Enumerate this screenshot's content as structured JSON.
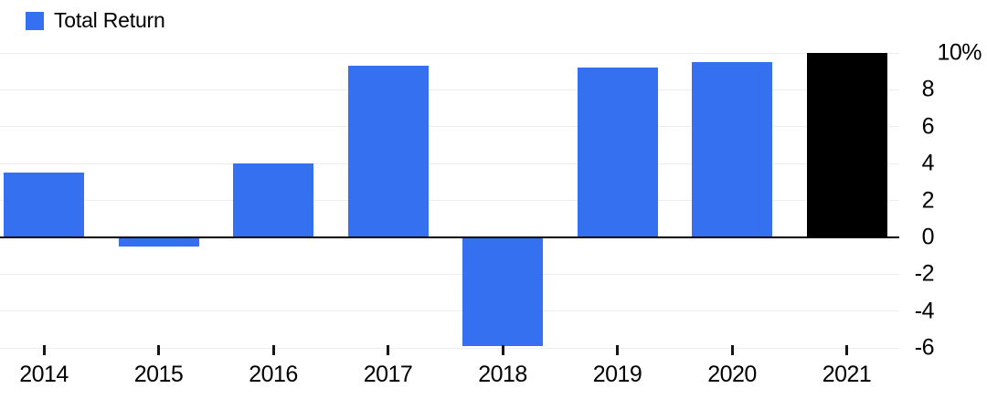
{
  "legend": {
    "label": "Total Return",
    "swatch_color": "#3470F0"
  },
  "chart_data": {
    "type": "bar",
    "title": "",
    "xlabel": "",
    "ylabel": "",
    "categories": [
      "2014",
      "2015",
      "2016",
      "2017",
      "2018",
      "2019",
      "2020",
      "2021"
    ],
    "series": [
      {
        "name": "Total Return",
        "values": [
          3.5,
          -0.5,
          4.0,
          9.3,
          -5.9,
          9.2,
          9.5,
          10.0
        ]
      }
    ],
    "bar_colors": [
      "#3470F0",
      "#3470F0",
      "#3470F0",
      "#3470F0",
      "#3470F0",
      "#3470F0",
      "#3470F0",
      "#000000"
    ],
    "ylim": [
      -6,
      10
    ],
    "y_axis_side": "right",
    "y_ticks": [
      {
        "v": 10,
        "label": "10%"
      },
      {
        "v": 8,
        "label": "8"
      },
      {
        "v": 6,
        "label": "6"
      },
      {
        "v": 4,
        "label": "4"
      },
      {
        "v": 2,
        "label": "2"
      },
      {
        "v": 0,
        "label": "0"
      },
      {
        "v": -2,
        "label": "-2"
      },
      {
        "v": -4,
        "label": "-4"
      },
      {
        "v": -6,
        "label": "-6"
      }
    ],
    "grid": "horizontal",
    "legend_position": "top-left",
    "colors": {
      "bar_blue": "#3470F0",
      "bar_black": "#000000",
      "gridline": "#ededed",
      "baseline": "#000000",
      "text": "#000000"
    }
  }
}
